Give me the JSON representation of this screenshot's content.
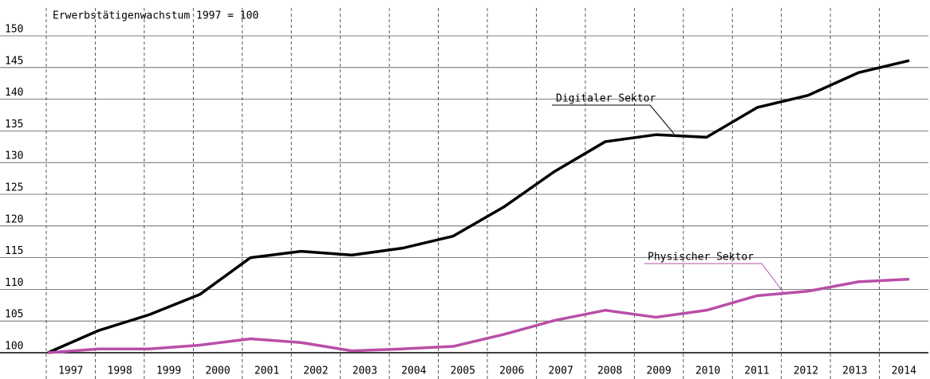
{
  "chart_data": {
    "type": "line",
    "y_label": "Erwerbstätigenwachstum 1997 = 100",
    "categories": [
      "1997",
      "1998",
      "1999",
      "2000",
      "2001",
      "2002",
      "2003",
      "2004",
      "2005",
      "2006",
      "2007",
      "2008",
      "2009",
      "2010",
      "2011",
      "2012",
      "2013",
      "2014"
    ],
    "series": [
      {
        "name": "Digitaler Sektor",
        "color": "#000000",
        "values": [
          100,
          103.5,
          106,
          109.2,
          115,
          116,
          115.4,
          116.5,
          118.4,
          123,
          128.6,
          133.3,
          134.4,
          134,
          138.7,
          140.6,
          144.2,
          146.1
        ]
      },
      {
        "name": "Physischer Sektor",
        "color": "#b94fa8",
        "values": [
          100,
          100.6,
          100.6,
          101.2,
          102.2,
          101.6,
          100.3,
          100.6,
          101,
          102.9,
          105.1,
          106.7,
          105.6,
          106.7,
          109,
          109.7,
          111.2,
          111.6
        ]
      }
    ],
    "ylim": [
      100,
      150
    ],
    "yticks": [
      100,
      105,
      110,
      115,
      120,
      125,
      130,
      135,
      140,
      145,
      150
    ],
    "grid": true
  }
}
